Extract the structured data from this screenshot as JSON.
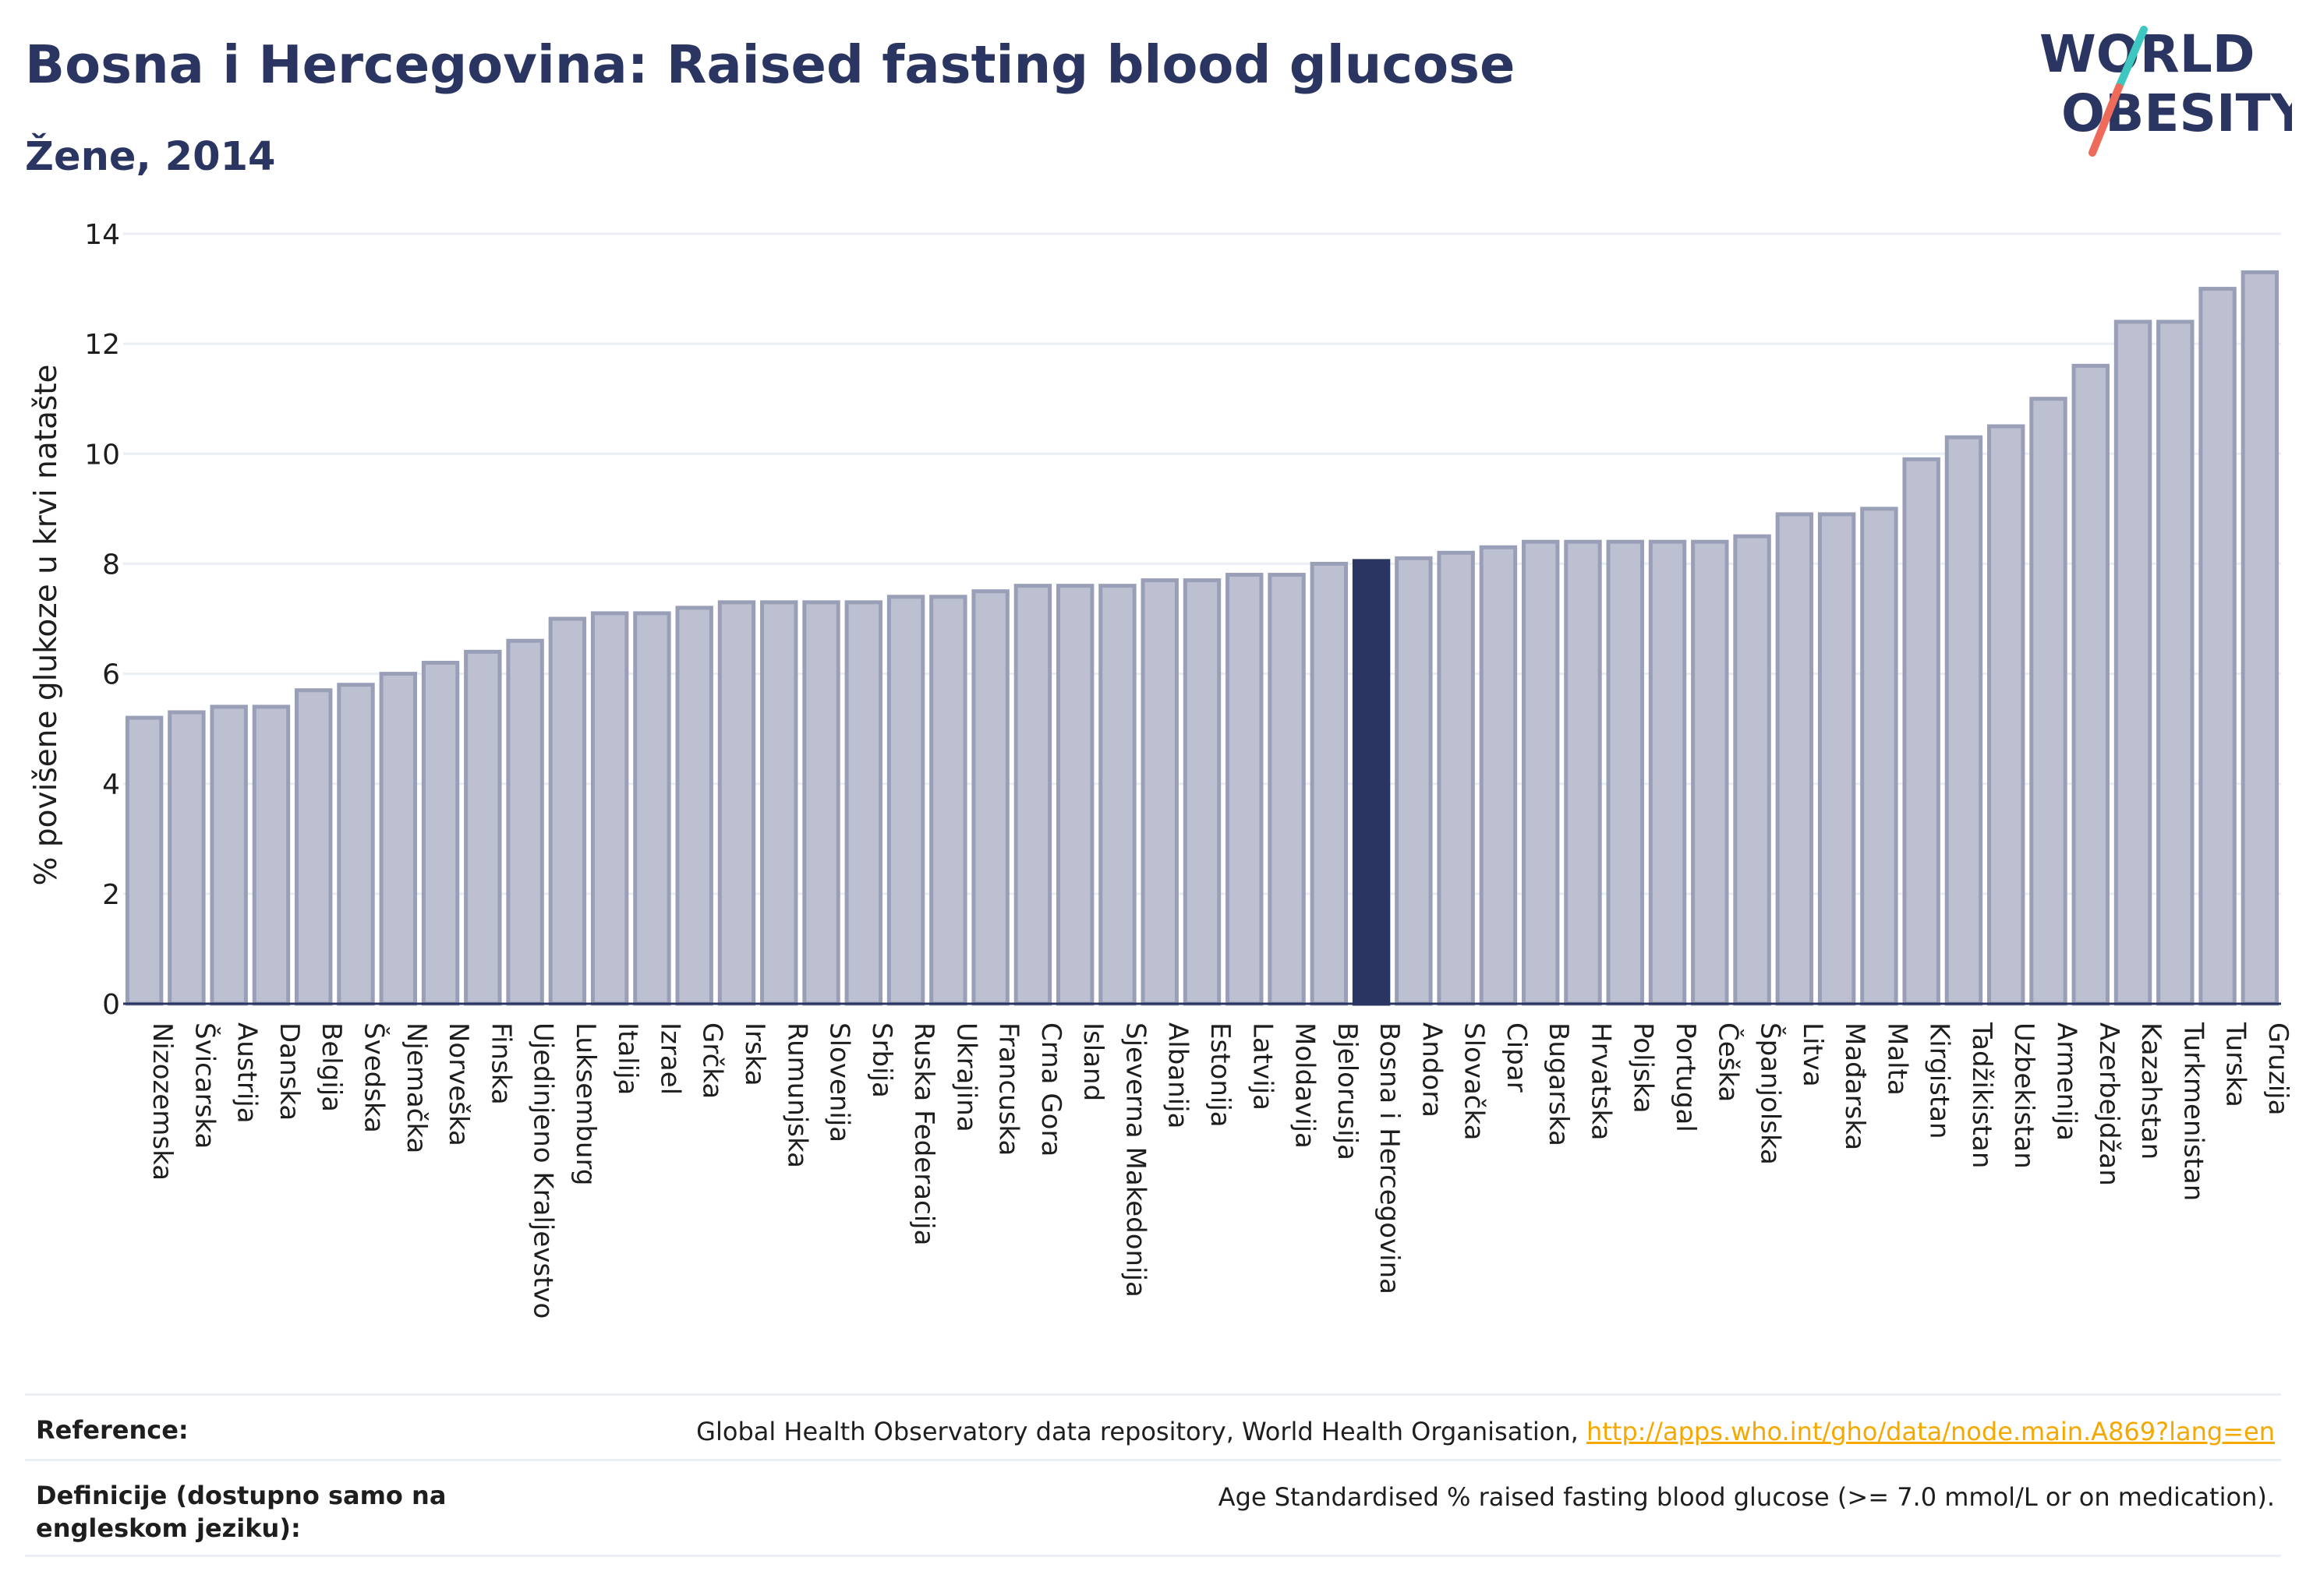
{
  "header": {
    "title": "Bosna i Hercegovina: Raised fasting blood glucose",
    "subtitle": "Žene, 2014"
  },
  "logo": {
    "line1": "WORLD",
    "line2": "OBESITY"
  },
  "colors": {
    "highlight": "#2b3561",
    "bar_fill": "#bcc0d0",
    "bar_stroke": "#9a9fb8",
    "grid": "#eceef5",
    "logo_teal": "#3ec6c0",
    "logo_red": "#ee6a5a",
    "link": "#f5a800"
  },
  "chart_data": {
    "type": "bar",
    "ylabel": "% povišene glukoze u krvi natašte",
    "xlabel": "",
    "ylim": [
      0,
      14
    ],
    "yticks": [
      0,
      2,
      4,
      6,
      8,
      10,
      12,
      14
    ],
    "grid": true,
    "highlight": "Bosna i Hercegovina",
    "categories": [
      "Nizozemska",
      "Švicarska",
      "Austrija",
      "Danska",
      "Belgija",
      "Švedska",
      "Njemačka",
      "Norveška",
      "Finska",
      "Ujedinjeno Kraljevstvo",
      "Luksemburg",
      "Italija",
      "Izrael",
      "Grčka",
      "Irska",
      "Rumunjska",
      "Slovenija",
      "Srbija",
      "Ruska Federacija",
      "Ukrajina",
      "Francuska",
      "Crna Gora",
      "Island",
      "Sjeverna Makedonija",
      "Albanija",
      "Estonija",
      "Latvija",
      "Moldavija",
      "Bjelorusija",
      "Bosna i Hercegovina",
      "Andora",
      "Slovačka",
      "Cipar",
      "Bugarska",
      "Hrvatska",
      "Poljska",
      "Portugal",
      "Češka",
      "Španjolska",
      "Litva",
      "Mađarska",
      "Malta",
      "Kirgistan",
      "Tadžikistan",
      "Uzbekistan",
      "Armenija",
      "Azerbejdžan",
      "Kazahstan",
      "Turkmenistan",
      "Turska",
      "Gruzija"
    ],
    "values": [
      5.2,
      5.3,
      5.4,
      5.4,
      5.7,
      5.8,
      6.0,
      6.2,
      6.4,
      6.6,
      7.0,
      7.1,
      7.1,
      7.2,
      7.3,
      7.3,
      7.3,
      7.3,
      7.4,
      7.4,
      7.5,
      7.6,
      7.6,
      7.6,
      7.7,
      7.7,
      7.8,
      7.8,
      8.0,
      8.05,
      8.1,
      8.2,
      8.3,
      8.4,
      8.4,
      8.4,
      8.4,
      8.4,
      8.5,
      8.9,
      8.9,
      9.0,
      9.9,
      10.3,
      10.5,
      11.0,
      11.6,
      12.4,
      12.4,
      13.0,
      13.3
    ]
  },
  "footer": {
    "reference_label": "Reference:",
    "reference_text": "Global Health Observatory data repository, World Health Organisation, ",
    "reference_link": "http://apps.who.int/gho/data/node.main.A869?lang=en",
    "definition_label": "Definicije (dostupno samo na engleskom jeziku):",
    "definition_text": "Age Standardised % raised fasting blood glucose (>= 7.0 mmol/L or on medication)."
  }
}
